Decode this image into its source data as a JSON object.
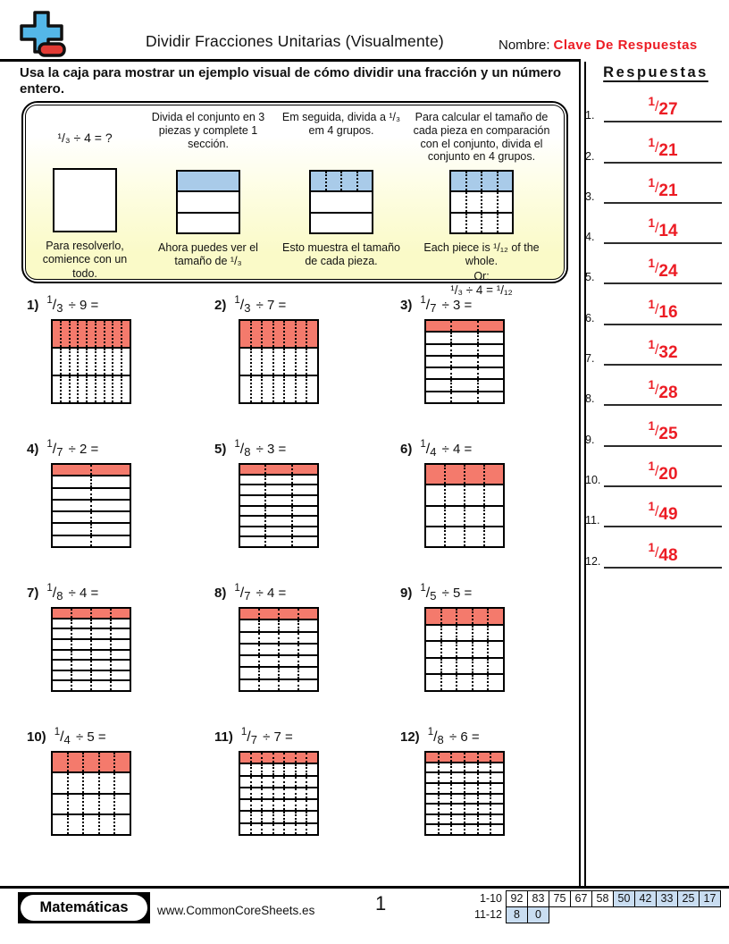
{
  "colors": {
    "shade_red": "#F47A6C",
    "shade_blue": "#A9CBE9",
    "answer_red": "#EC1C24",
    "score_blue": "#C9DDF1",
    "example_yellow": "#FAFAC8"
  },
  "header": {
    "title": "Dividir Fracciones Unitarias (Visualmente)",
    "name_label": "Nombre:",
    "name_value": "Clave De Respuestas",
    "logo_icon": "plus-minus-icon"
  },
  "instructions": "Usa la caja para mostrar un ejemplo visual de cómo dividir una fracción y un número entero.",
  "example": {
    "steps": [
      {
        "top": "¹/₃ ÷ 4 = ?",
        "bottom": "Para resolverlo, comience con un todo.",
        "grid": {
          "rows": 1,
          "cols": 1,
          "shade": null,
          "dotted": "none"
        }
      },
      {
        "top": "Divida el conjunto en 3 piezas y complete 1 sección.",
        "bottom": "Ahora puedes ver el tamaño de ¹/₃",
        "grid": {
          "rows": 3,
          "cols": 1,
          "shade": "blue",
          "dotted": "none"
        }
      },
      {
        "top": "Em seguida, divida a ¹/₃ em 4 grupos.",
        "bottom": "Esto muestra el tamaño de cada pieza.",
        "grid": {
          "rows": 3,
          "cols": 4,
          "shade": "blue",
          "dotted": "top"
        }
      },
      {
        "top": "Para calcular el tamaño de cada pieza en comparación con el conjunto, divida el conjunto en 4 grupos.",
        "bottom": "Each piece is ¹/₁₂ of the whole.",
        "or_label": "Or:",
        "formula": "¹/₃ ÷ 4 = ¹/₁₂",
        "grid": {
          "rows": 3,
          "cols": 4,
          "shade": "blue",
          "dotted": "all"
        }
      }
    ]
  },
  "problems": [
    {
      "n": "1)",
      "num": "1",
      "den": "3",
      "divisor": "9",
      "rows": 3,
      "cols": 9
    },
    {
      "n": "2)",
      "num": "1",
      "den": "3",
      "divisor": "7",
      "rows": 3,
      "cols": 7
    },
    {
      "n": "3)",
      "num": "1",
      "den": "7",
      "divisor": "3",
      "rows": 7,
      "cols": 3
    },
    {
      "n": "4)",
      "num": "1",
      "den": "7",
      "divisor": "2",
      "rows": 7,
      "cols": 2
    },
    {
      "n": "5)",
      "num": "1",
      "den": "8",
      "divisor": "3",
      "rows": 8,
      "cols": 3
    },
    {
      "n": "6)",
      "num": "1",
      "den": "4",
      "divisor": "4",
      "rows": 4,
      "cols": 4
    },
    {
      "n": "7)",
      "num": "1",
      "den": "8",
      "divisor": "4",
      "rows": 8,
      "cols": 4
    },
    {
      "n": "8)",
      "num": "1",
      "den": "7",
      "divisor": "4",
      "rows": 7,
      "cols": 4
    },
    {
      "n": "9)",
      "num": "1",
      "den": "5",
      "divisor": "5",
      "rows": 5,
      "cols": 5
    },
    {
      "n": "10)",
      "num": "1",
      "den": "4",
      "divisor": "5",
      "rows": 4,
      "cols": 5
    },
    {
      "n": "11)",
      "num": "1",
      "den": "7",
      "divisor": "7",
      "rows": 7,
      "cols": 7
    },
    {
      "n": "12)",
      "num": "1",
      "den": "8",
      "divisor": "6",
      "rows": 8,
      "cols": 6
    }
  ],
  "answers_panel": {
    "title": "Respuestas",
    "answers": [
      {
        "n": "1.",
        "num": "1",
        "den": "27"
      },
      {
        "n": "2.",
        "num": "1",
        "den": "21"
      },
      {
        "n": "3.",
        "num": "1",
        "den": "21"
      },
      {
        "n": "4.",
        "num": "1",
        "den": "14"
      },
      {
        "n": "5.",
        "num": "1",
        "den": "24"
      },
      {
        "n": "6.",
        "num": "1",
        "den": "16"
      },
      {
        "n": "7.",
        "num": "1",
        "den": "32"
      },
      {
        "n": "8.",
        "num": "1",
        "den": "28"
      },
      {
        "n": "9.",
        "num": "1",
        "den": "25"
      },
      {
        "n": "10.",
        "num": "1",
        "den": "20"
      },
      {
        "n": "11.",
        "num": "1",
        "den": "49"
      },
      {
        "n": "12.",
        "num": "1",
        "den": "48"
      }
    ]
  },
  "footer": {
    "brand": "Matemáticas",
    "website": "www.CommonCoreSheets.es",
    "page_number": "1",
    "score_table": {
      "rows": [
        {
          "label": "1-10",
          "cells": [
            {
              "v": "92",
              "hl": false
            },
            {
              "v": "83",
              "hl": false
            },
            {
              "v": "75",
              "hl": false
            },
            {
              "v": "67",
              "hl": false
            },
            {
              "v": "58",
              "hl": false
            },
            {
              "v": "50",
              "hl": true
            },
            {
              "v": "42",
              "hl": true
            },
            {
              "v": "33",
              "hl": true
            },
            {
              "v": "25",
              "hl": true
            },
            {
              "v": "17",
              "hl": true
            }
          ]
        },
        {
          "label": "11-12",
          "cells": [
            {
              "v": "8",
              "hl": true
            },
            {
              "v": "0",
              "hl": true
            }
          ]
        }
      ]
    }
  }
}
